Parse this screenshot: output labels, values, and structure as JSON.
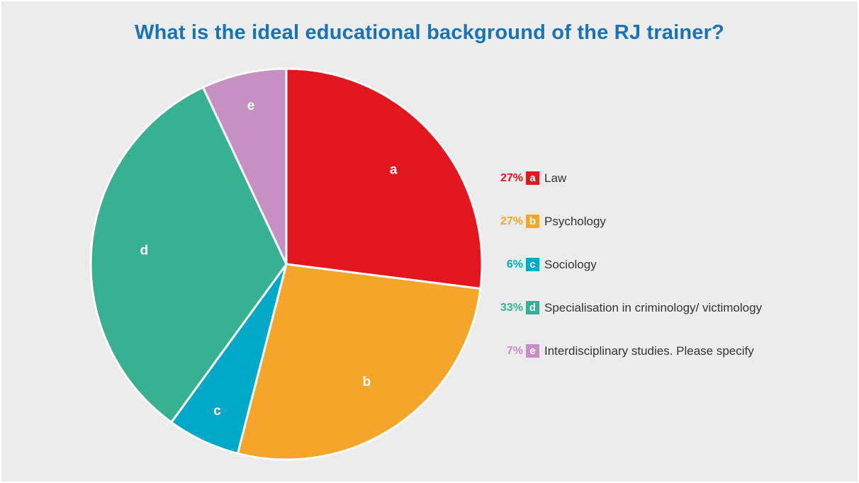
{
  "chart_data": {
    "type": "pie",
    "title": "What is the ideal educational background of the RJ trainer?",
    "slices": [
      {
        "key": "a",
        "label": "Law",
        "value": 27,
        "pct_label": "27%",
        "color": "#e1161f"
      },
      {
        "key": "b",
        "label": "Psychology",
        "value": 27,
        "pct_label": "27%",
        "color": "#f5a62a"
      },
      {
        "key": "c",
        "label": "Sociology",
        "value": 6,
        "pct_label": "6%",
        "color": "#00a9c7"
      },
      {
        "key": "d",
        "label": "Specialisation in criminology/ victimology",
        "value": 33,
        "pct_label": "33%",
        "color": "#38b193"
      },
      {
        "key": "e",
        "label": "Interdisciplinary studies. Please specify",
        "value": 7,
        "pct_label": "7%",
        "color": "#c691c2"
      }
    ],
    "legend_position": "right",
    "title_color": "#1873b5",
    "background_color": "#ececec"
  }
}
